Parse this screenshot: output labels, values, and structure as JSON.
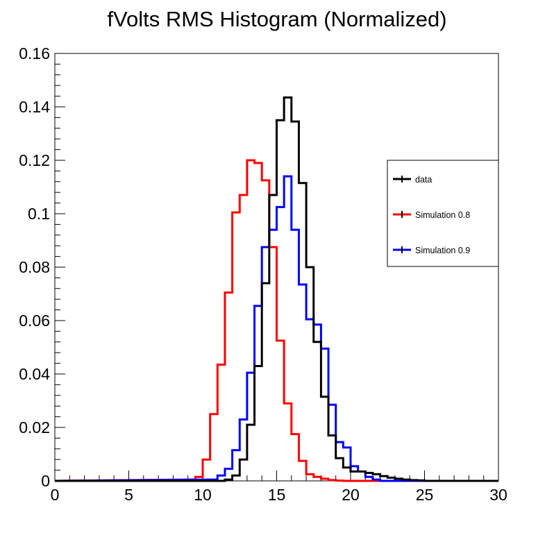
{
  "chart_data": {
    "type": "histogram",
    "title": "fVolts RMS Histogram (Normalized)",
    "xlim": [
      0,
      30
    ],
    "ylim": [
      0,
      0.16
    ],
    "bin_width": 0.5,
    "x_ticks": [
      {
        "value": 0,
        "label": "0"
      },
      {
        "value": 5,
        "label": "5"
      },
      {
        "value": 10,
        "label": "10"
      },
      {
        "value": 15,
        "label": "15"
      },
      {
        "value": 20,
        "label": "20"
      },
      {
        "value": 25,
        "label": "25"
      },
      {
        "value": 30,
        "label": "30"
      }
    ],
    "y_ticks": [
      {
        "value": 0,
        "label": "0"
      },
      {
        "value": 0.02,
        "label": "0.02"
      },
      {
        "value": 0.04,
        "label": "0.04"
      },
      {
        "value": 0.06,
        "label": "0.06"
      },
      {
        "value": 0.08,
        "label": "0.08"
      },
      {
        "value": 0.1,
        "label": "0.1"
      },
      {
        "value": 0.12,
        "label": "0.12"
      },
      {
        "value": 0.14,
        "label": "0.14"
      },
      {
        "value": 0.16,
        "label": "0.16"
      }
    ],
    "legend_position": "right",
    "series": [
      {
        "name": "data",
        "color": "#000000",
        "bins": [
          [
            10.5,
            0.0
          ],
          [
            11.0,
            0.0
          ],
          [
            11.5,
            0.0005
          ],
          [
            12.0,
            0.002
          ],
          [
            12.5,
            0.008
          ],
          [
            13.0,
            0.021
          ],
          [
            13.5,
            0.043
          ],
          [
            14.0,
            0.074
          ],
          [
            14.5,
            0.107
          ],
          [
            15.0,
            0.135
          ],
          [
            15.5,
            0.1435
          ],
          [
            16.0,
            0.1345
          ],
          [
            16.5,
            0.1115
          ],
          [
            17.0,
            0.08
          ],
          [
            17.5,
            0.052
          ],
          [
            18.0,
            0.0315
          ],
          [
            18.5,
            0.017
          ],
          [
            19.0,
            0.0085
          ],
          [
            19.5,
            0.005
          ],
          [
            20.0,
            0.0035
          ],
          [
            20.5,
            0.0035
          ],
          [
            21.0,
            0.003
          ],
          [
            21.5,
            0.0025
          ],
          [
            22.0,
            0.0018
          ],
          [
            22.5,
            0.0012
          ],
          [
            23.0,
            0.0008
          ],
          [
            23.5,
            0.0005
          ],
          [
            24.0,
            0.0003
          ],
          [
            24.5,
            0.0002
          ]
        ]
      },
      {
        "name": "Simulation 0.8",
        "color": "#ff0000",
        "bins": [
          [
            9.0,
            0.0005
          ],
          [
            9.5,
            0.0015
          ],
          [
            10.0,
            0.008
          ],
          [
            10.5,
            0.025
          ],
          [
            11.0,
            0.0435
          ],
          [
            11.5,
            0.0705
          ],
          [
            12.0,
            0.1005
          ],
          [
            12.5,
            0.107
          ],
          [
            13.0,
            0.12
          ],
          [
            13.5,
            0.119
          ],
          [
            14.0,
            0.1125
          ],
          [
            14.5,
            0.0875
          ],
          [
            15.0,
            0.0525
          ],
          [
            15.5,
            0.029
          ],
          [
            16.0,
            0.0175
          ],
          [
            16.5,
            0.0075
          ],
          [
            17.0,
            0.0025
          ],
          [
            17.5,
            0.0015
          ],
          [
            18.0,
            0.0008
          ],
          [
            18.5,
            0.0003
          ],
          [
            19.0,
            0.0001
          ]
        ]
      },
      {
        "name": "Simulation 0.9",
        "color": "#0000ff",
        "bins": [
          [
            10.5,
            0.0005
          ],
          [
            11.0,
            0.002
          ],
          [
            11.5,
            0.0045
          ],
          [
            12.0,
            0.0115
          ],
          [
            12.5,
            0.023
          ],
          [
            13.0,
            0.0405
          ],
          [
            13.5,
            0.0655
          ],
          [
            14.0,
            0.0875
          ],
          [
            14.5,
            0.094
          ],
          [
            15.0,
            0.1025
          ],
          [
            15.5,
            0.114
          ],
          [
            16.0,
            0.094
          ],
          [
            16.5,
            0.0735
          ],
          [
            17.0,
            0.0605
          ],
          [
            17.5,
            0.0585
          ],
          [
            18.0,
            0.0495
          ],
          [
            18.5,
            0.0285
          ],
          [
            19.0,
            0.0145
          ],
          [
            19.5,
            0.0125
          ],
          [
            20.0,
            0.0055
          ],
          [
            20.5,
            0.0035
          ],
          [
            21.0,
            0.0015
          ],
          [
            21.5,
            0.0005
          ]
        ]
      }
    ]
  }
}
